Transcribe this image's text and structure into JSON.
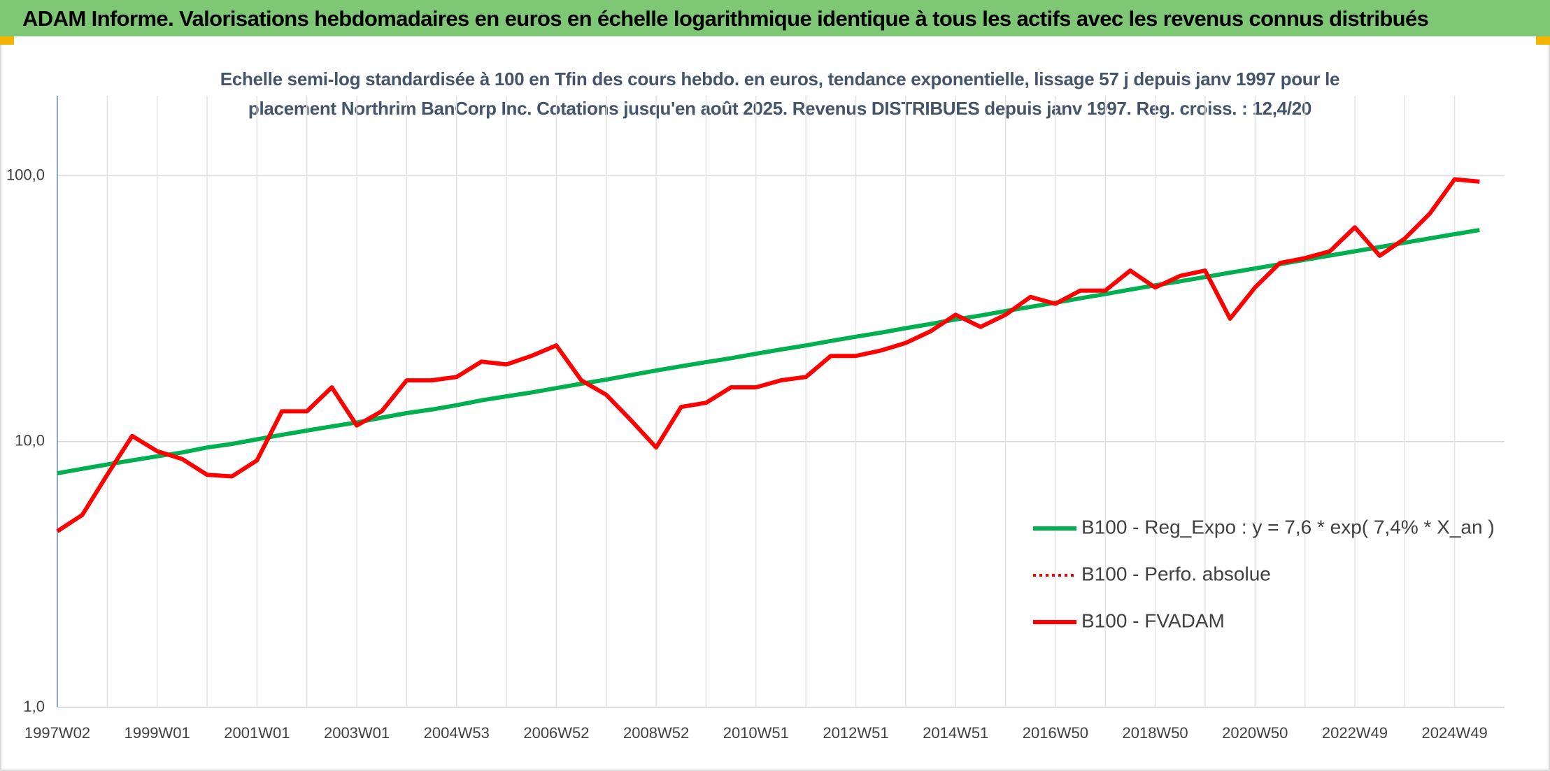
{
  "chart_data": {
    "type": "line",
    "title": "ADAM Informe. Valorisations hebdomadaires en euros en échelle logarithmique identique à tous les actifs avec les revenus connus distribués",
    "subtitle": "Echelle semi-log standardisée à 100 en Tfin des cours hebdo. en euros, tendance exponentielle, lissage 57 j depuis janv 1997 pour le placement Northrim BanCorp Inc. Cotations jusqu'en août 2025. Revenus DISTRIBUES depuis janv 1997. Reg. croiss. : 12,4/20",
    "categories": [
      "1997W02",
      null,
      null,
      null,
      "1999W01",
      null,
      null,
      null,
      "2001W01",
      null,
      null,
      null,
      "2003W01",
      null,
      null,
      null,
      "2004W53",
      null,
      null,
      null,
      "2006W52",
      null,
      null,
      null,
      "2008W52",
      null,
      null,
      null,
      "2010W51",
      null,
      null,
      null,
      "2012W51",
      null,
      null,
      null,
      "2014W51",
      null,
      null,
      null,
      "2016W50",
      null,
      null,
      null,
      "2018W50",
      null,
      null,
      null,
      "2020W50",
      null,
      null,
      null,
      "2022W49",
      null,
      null,
      null,
      "2024W49",
      null
    ],
    "series": [
      {
        "name": "B100 - Reg_Expo : y = 7,6 * exp( 7,4% *  X_an )",
        "color": "#00b050",
        "style": "solid",
        "values": [
          7.6,
          7.9,
          8.2,
          8.5,
          8.8,
          9.1,
          9.5,
          9.8,
          10.2,
          10.6,
          11.0,
          11.4,
          11.8,
          12.3,
          12.8,
          13.2,
          13.7,
          14.3,
          14.8,
          15.3,
          15.9,
          16.5,
          17.1,
          17.8,
          18.5,
          19.2,
          19.9,
          20.6,
          21.4,
          22.2,
          23.0,
          23.9,
          24.8,
          25.7,
          26.7,
          27.7,
          28.8,
          29.8,
          31.0,
          32.1,
          33.3,
          34.6,
          35.9,
          37.3,
          38.7,
          40.1,
          41.6,
          43.2,
          44.8,
          46.5,
          48.3,
          50.1,
          52.0,
          53.9,
          56.0,
          58.1,
          60.3,
          62.5
        ]
      },
      {
        "name": "B100 - Perfo. absolue",
        "color": "#ff0000",
        "style": "dotted",
        "values": [
          4.6,
          5.3,
          7.5,
          10.5,
          9.2,
          8.6,
          7.5,
          7.4,
          8.5,
          13,
          13,
          16,
          11.5,
          13,
          17,
          17,
          17.5,
          20,
          19.5,
          21,
          23,
          17,
          15,
          12,
          9.5,
          13.5,
          14,
          16,
          16,
          17,
          17.5,
          21,
          21,
          22,
          23.5,
          26,
          30,
          27,
          30,
          35,
          33,
          37,
          37,
          44,
          38,
          42,
          44,
          29,
          38,
          47,
          49,
          52,
          64,
          50,
          58,
          72,
          97,
          95
        ]
      },
      {
        "name": "B100 - FVADAM",
        "color": "#ff0000",
        "style": "solid",
        "values": [
          4.6,
          5.3,
          7.5,
          10.5,
          9.2,
          8.6,
          7.5,
          7.4,
          8.5,
          13,
          13,
          16,
          11.5,
          13,
          17,
          17,
          17.5,
          20,
          19.5,
          21,
          23,
          17,
          15,
          12,
          9.5,
          13.5,
          14,
          16,
          16,
          17,
          17.5,
          21,
          21,
          22,
          23.5,
          26,
          30,
          27,
          30,
          35,
          33,
          37,
          37,
          44,
          38,
          42,
          44,
          29,
          38,
          47,
          49,
          52,
          64,
          50,
          58,
          72,
          97,
          95
        ]
      }
    ],
    "ylim": [
      1,
      200
    ],
    "yticks": [
      {
        "value": 1,
        "label": "1,0"
      },
      {
        "value": 10,
        "label": "10,0"
      },
      {
        "value": 100,
        "label": "100,0"
      }
    ],
    "log_scale": true,
    "grid": true,
    "legend": "lower right"
  }
}
